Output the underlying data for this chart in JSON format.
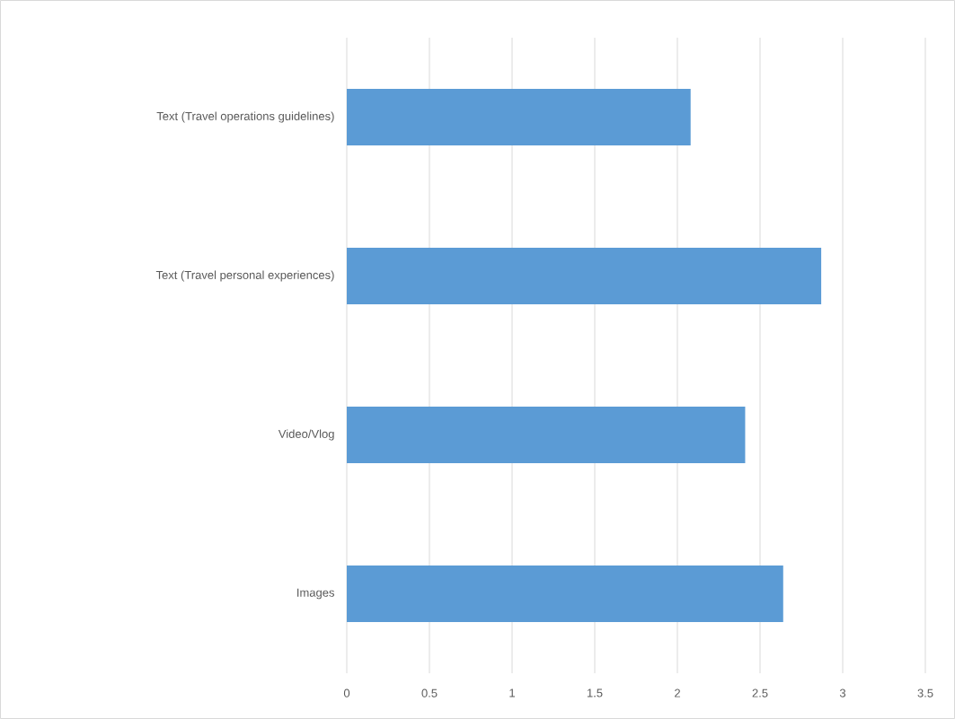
{
  "chart_data": {
    "type": "bar",
    "orientation": "horizontal",
    "categories": [
      "Text (Travel operations guidelines)",
      "Text (Travel personal experiences)",
      "Video/Vlog",
      "Images"
    ],
    "values": [
      2.08,
      2.87,
      2.41,
      2.64
    ],
    "color": "#5b9bd5",
    "xlim": [
      0,
      3.5
    ],
    "xticks": [
      0,
      0.5,
      1,
      1.5,
      2,
      2.5,
      3,
      3.5
    ],
    "grid": "x"
  }
}
